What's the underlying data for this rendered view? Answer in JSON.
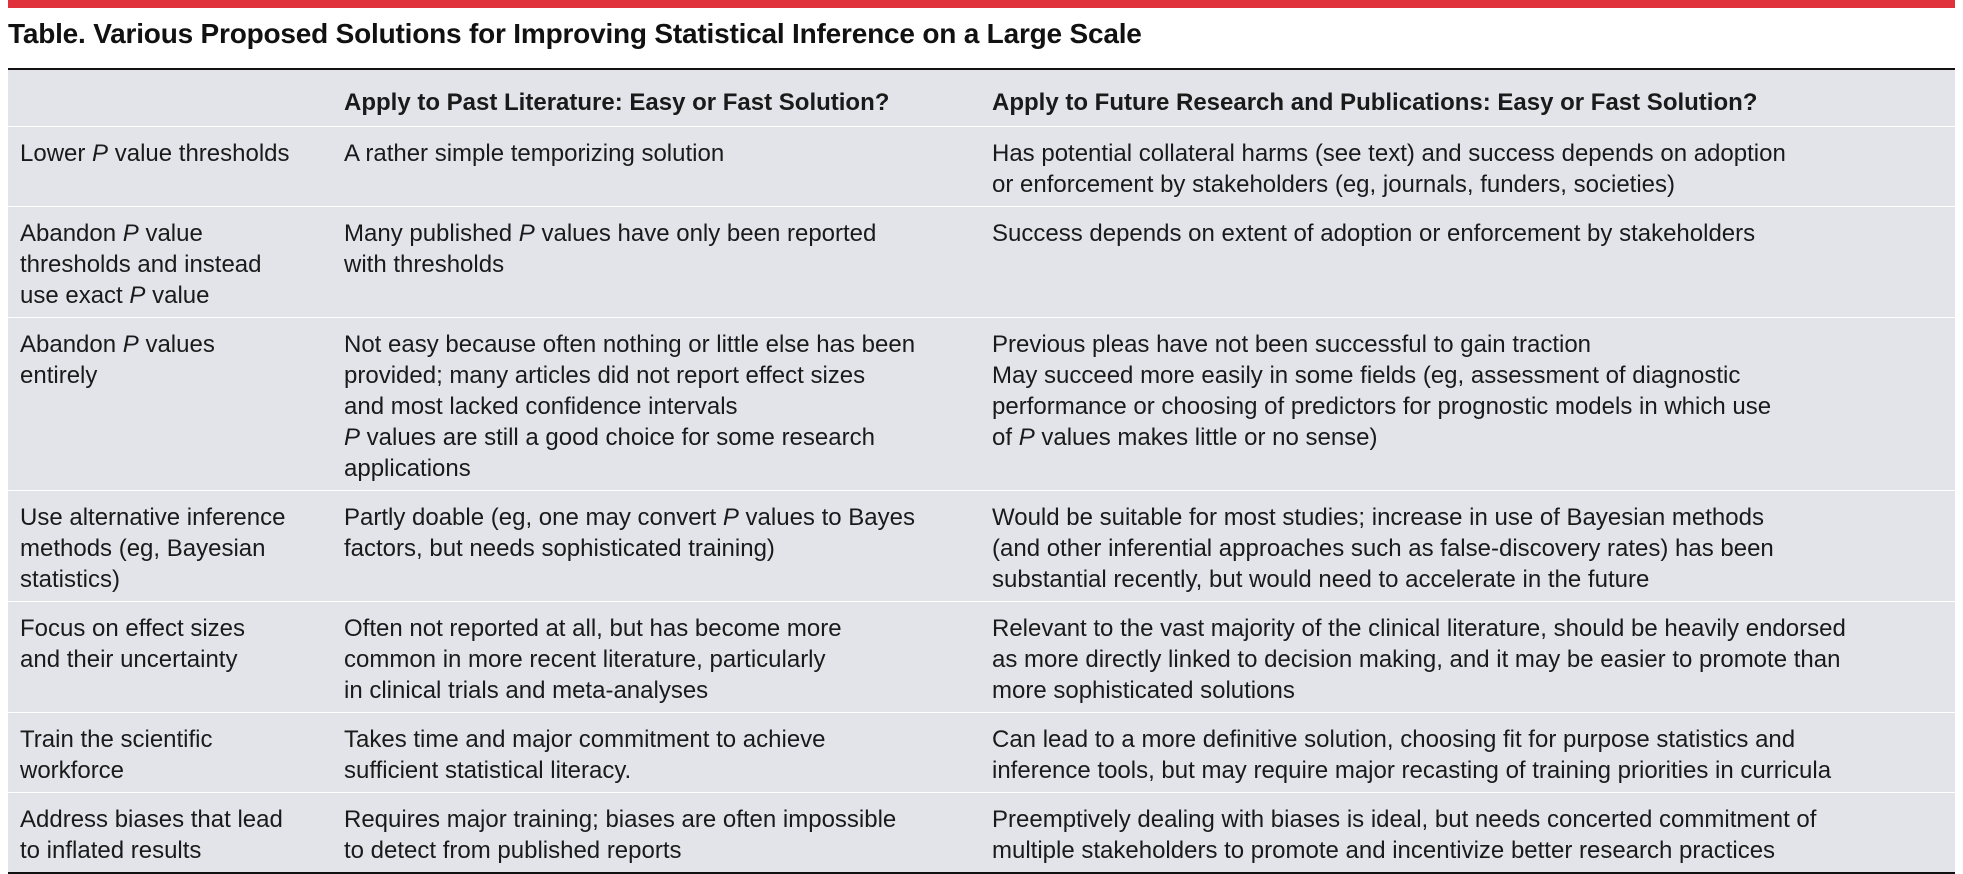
{
  "title": "Table. Various Proposed Solutions for Improving Statistical Inference on a Large Scale",
  "colors": {
    "accent_rule": "#e0323c",
    "table_fill": "#e3e4ea",
    "row_divider": "#ffffff"
  },
  "header": {
    "col1": "",
    "col2": "Apply to Past Literature: Easy or Fast Solution?",
    "col3": "Apply to Future Research and Publications: Easy or Fast Solution?"
  },
  "rows": [
    {
      "solution": [
        [
          "Lower ",
          "P",
          " value thresholds"
        ]
      ],
      "past": [
        [
          "A rather simple temporizing solution"
        ]
      ],
      "future": [
        [
          "Has potential collateral harms (see text) and success depends on adoption"
        ],
        [
          "or enforcement by stakeholders (eg, journals, funders, societies)"
        ]
      ]
    },
    {
      "solution": [
        [
          "Abandon ",
          "P",
          " value"
        ],
        [
          "thresholds and instead"
        ],
        [
          "use exact ",
          "P",
          " value"
        ]
      ],
      "past": [
        [
          "Many published ",
          "P",
          " values have only been reported"
        ],
        [
          "with thresholds"
        ]
      ],
      "future": [
        [
          "Success depends on extent of adoption or enforcement by stakeholders"
        ]
      ]
    },
    {
      "solution": [
        [
          "Abandon ",
          "P",
          " values"
        ],
        [
          "entirely"
        ]
      ],
      "past": [
        [
          "Not easy because often nothing or little else has been"
        ],
        [
          "provided; many articles did not report effect sizes"
        ],
        [
          "and most lacked confidence intervals"
        ],
        [
          "",
          "P",
          " values are still a good choice for some research"
        ],
        [
          "applications"
        ]
      ],
      "future": [
        [
          "Previous pleas have not been successful to gain traction"
        ],
        [
          "May succeed more easily in some fields (eg, assessment of diagnostic"
        ],
        [
          "performance or choosing of predictors for prognostic models in which use"
        ],
        [
          "of ",
          "P",
          " values makes little or no sense)"
        ]
      ]
    },
    {
      "solution": [
        [
          "Use alternative inference"
        ],
        [
          "methods (eg, Bayesian"
        ],
        [
          "statistics)"
        ]
      ],
      "past": [
        [
          "Partly doable (eg, one may convert ",
          "P",
          " values to Bayes"
        ],
        [
          "factors, but needs sophisticated training)"
        ]
      ],
      "future": [
        [
          "Would be suitable for most studies; increase in use of Bayesian methods"
        ],
        [
          "(and other inferential approaches such as false-discovery rates) has been"
        ],
        [
          "substantial recently, but would need to accelerate in the future"
        ]
      ]
    },
    {
      "solution": [
        [
          "Focus on effect sizes"
        ],
        [
          "and their uncertainty"
        ]
      ],
      "past": [
        [
          "Often not reported at all, but has become more"
        ],
        [
          "common in more recent literature, particularly"
        ],
        [
          "in clinical trials and meta-analyses"
        ]
      ],
      "future": [
        [
          "Relevant to the vast majority of the clinical literature, should be heavily endorsed"
        ],
        [
          "as more directly linked to decision making, and it may be easier to promote than"
        ],
        [
          "more sophisticated solutions"
        ]
      ]
    },
    {
      "solution": [
        [
          "Train the scientific"
        ],
        [
          "workforce"
        ]
      ],
      "past": [
        [
          "Takes time and major commitment to achieve"
        ],
        [
          "sufficient statistical literacy."
        ]
      ],
      "future": [
        [
          "Can lead to a more definitive solution, choosing fit for purpose statistics and"
        ],
        [
          "inference tools, but may require major recasting of training priorities in curricula"
        ]
      ]
    },
    {
      "solution": [
        [
          "Address biases that lead"
        ],
        [
          "to inflated results"
        ]
      ],
      "past": [
        [
          "Requires major training; biases are often impossible"
        ],
        [
          "to detect from published reports"
        ]
      ],
      "future": [
        [
          "Preemptively dealing with biases is ideal, but needs concerted commitment of"
        ],
        [
          "multiple stakeholders to promote and incentivize better research practices"
        ]
      ]
    }
  ]
}
